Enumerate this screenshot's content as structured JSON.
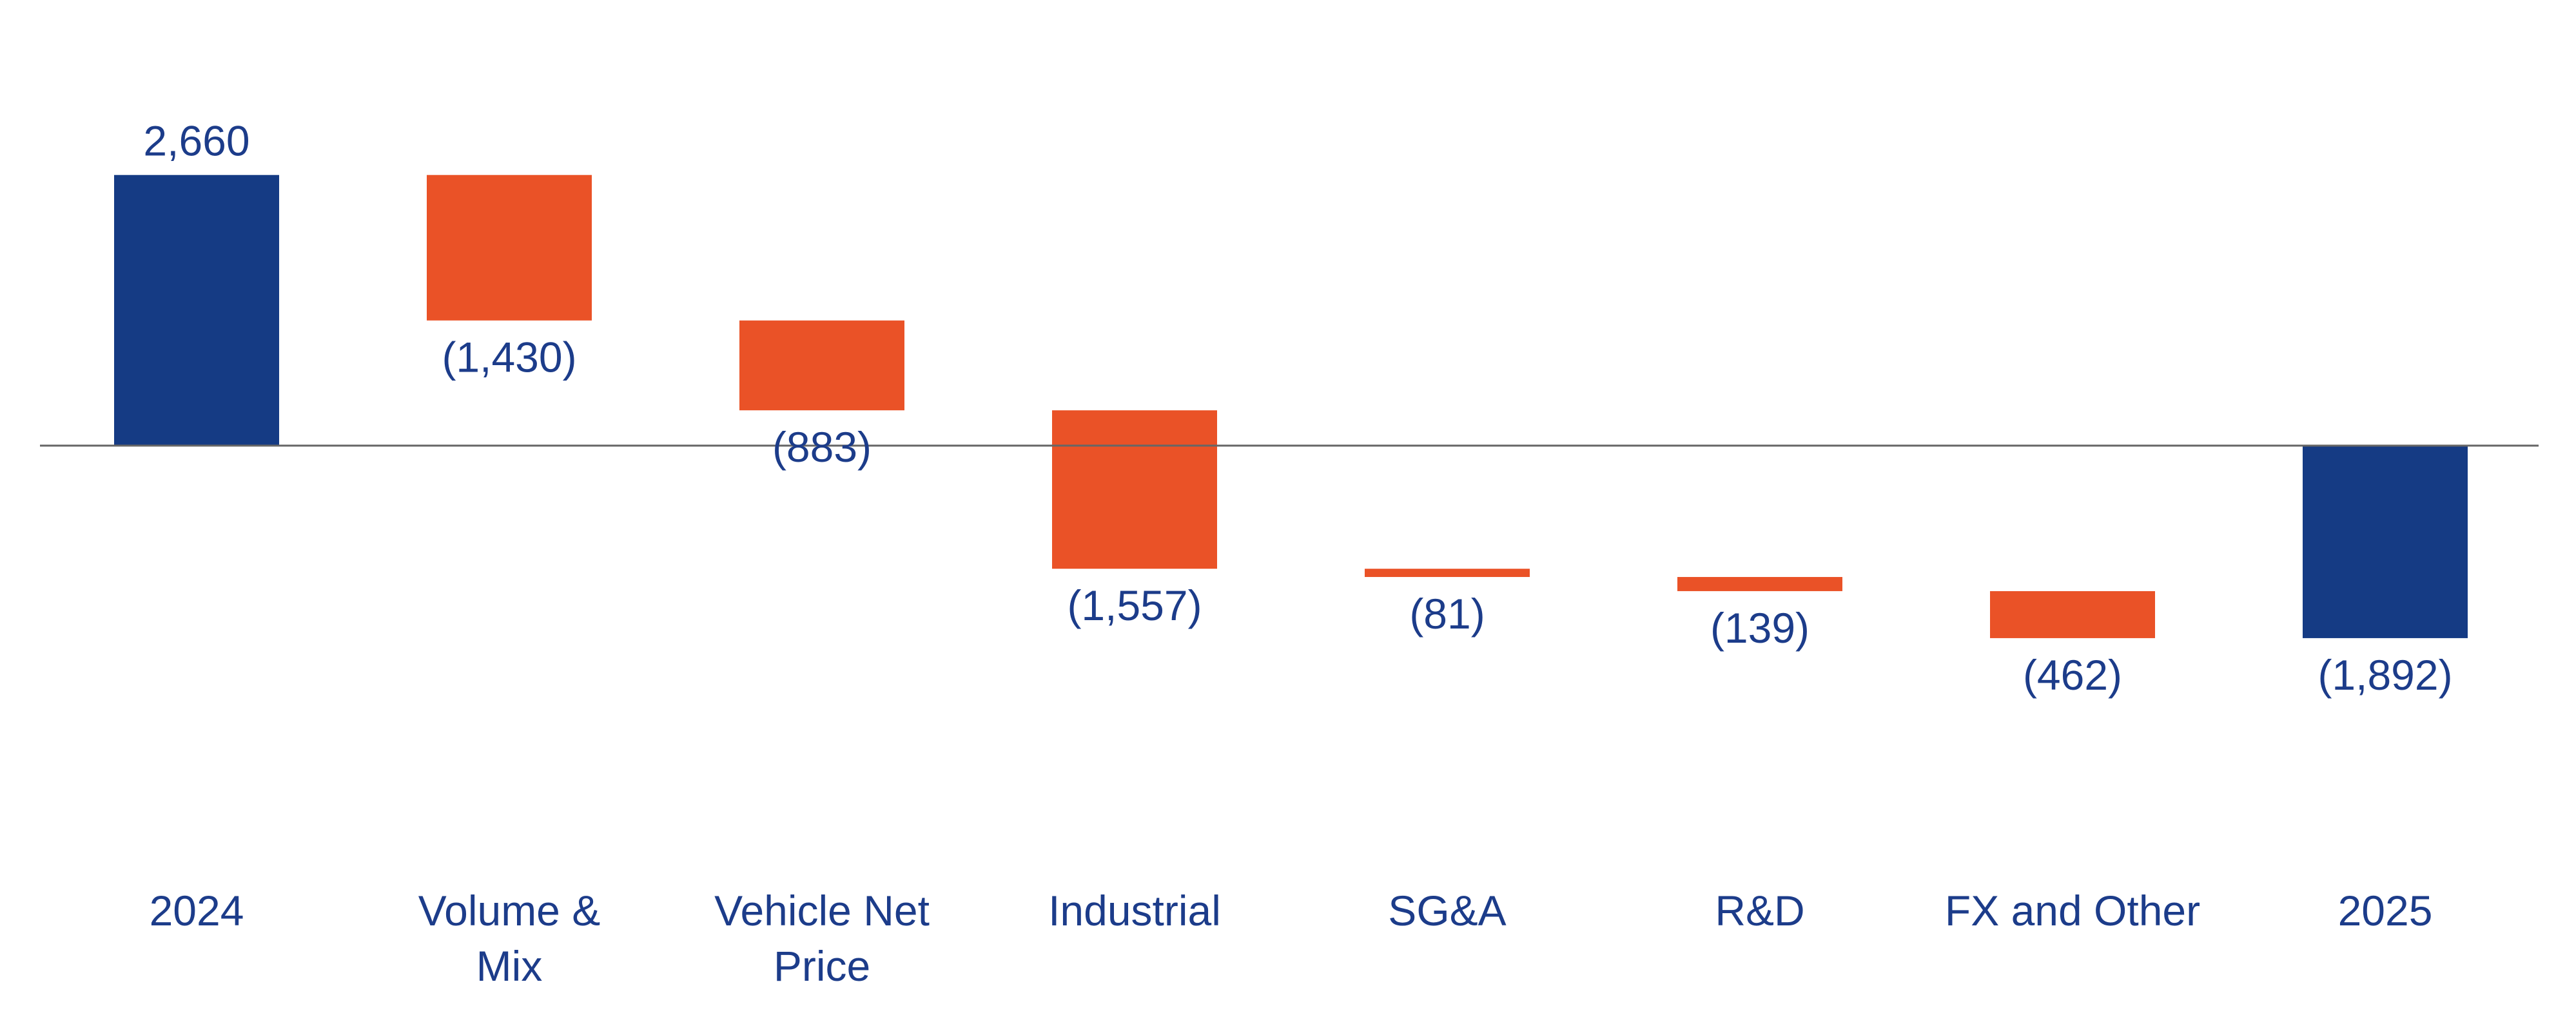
{
  "chart_data": {
    "type": "waterfall",
    "title": "",
    "xlabel": "",
    "ylabel": "",
    "ylim": [
      -4500,
      3300
    ],
    "colors": {
      "total": "#153B84",
      "decrease": "#EA5227",
      "text": "#1C3C8A",
      "axis": "#666666"
    },
    "items": [
      {
        "category": [
          "2024"
        ],
        "value": 2660,
        "kind": "total",
        "label": "2,660"
      },
      {
        "category": [
          "Volume &",
          "Mix"
        ],
        "value": -1430,
        "kind": "delta",
        "label": "(1,430)"
      },
      {
        "category": [
          "Vehicle Net",
          "Price"
        ],
        "value": -883,
        "kind": "delta",
        "label": "(883)"
      },
      {
        "category": [
          "Industrial"
        ],
        "value": -1557,
        "kind": "delta",
        "label": "(1,557)"
      },
      {
        "category": [
          "SG&A"
        ],
        "value": -81,
        "kind": "delta",
        "label": "(81)"
      },
      {
        "category": [
          "R&D"
        ],
        "value": -139,
        "kind": "delta",
        "label": "(139)"
      },
      {
        "category": [
          "FX and Other"
        ],
        "value": -462,
        "kind": "delta",
        "label": "(462)"
      },
      {
        "category": [
          "2025"
        ],
        "value": -1892,
        "kind": "total",
        "label": "(1,892)"
      }
    ]
  }
}
